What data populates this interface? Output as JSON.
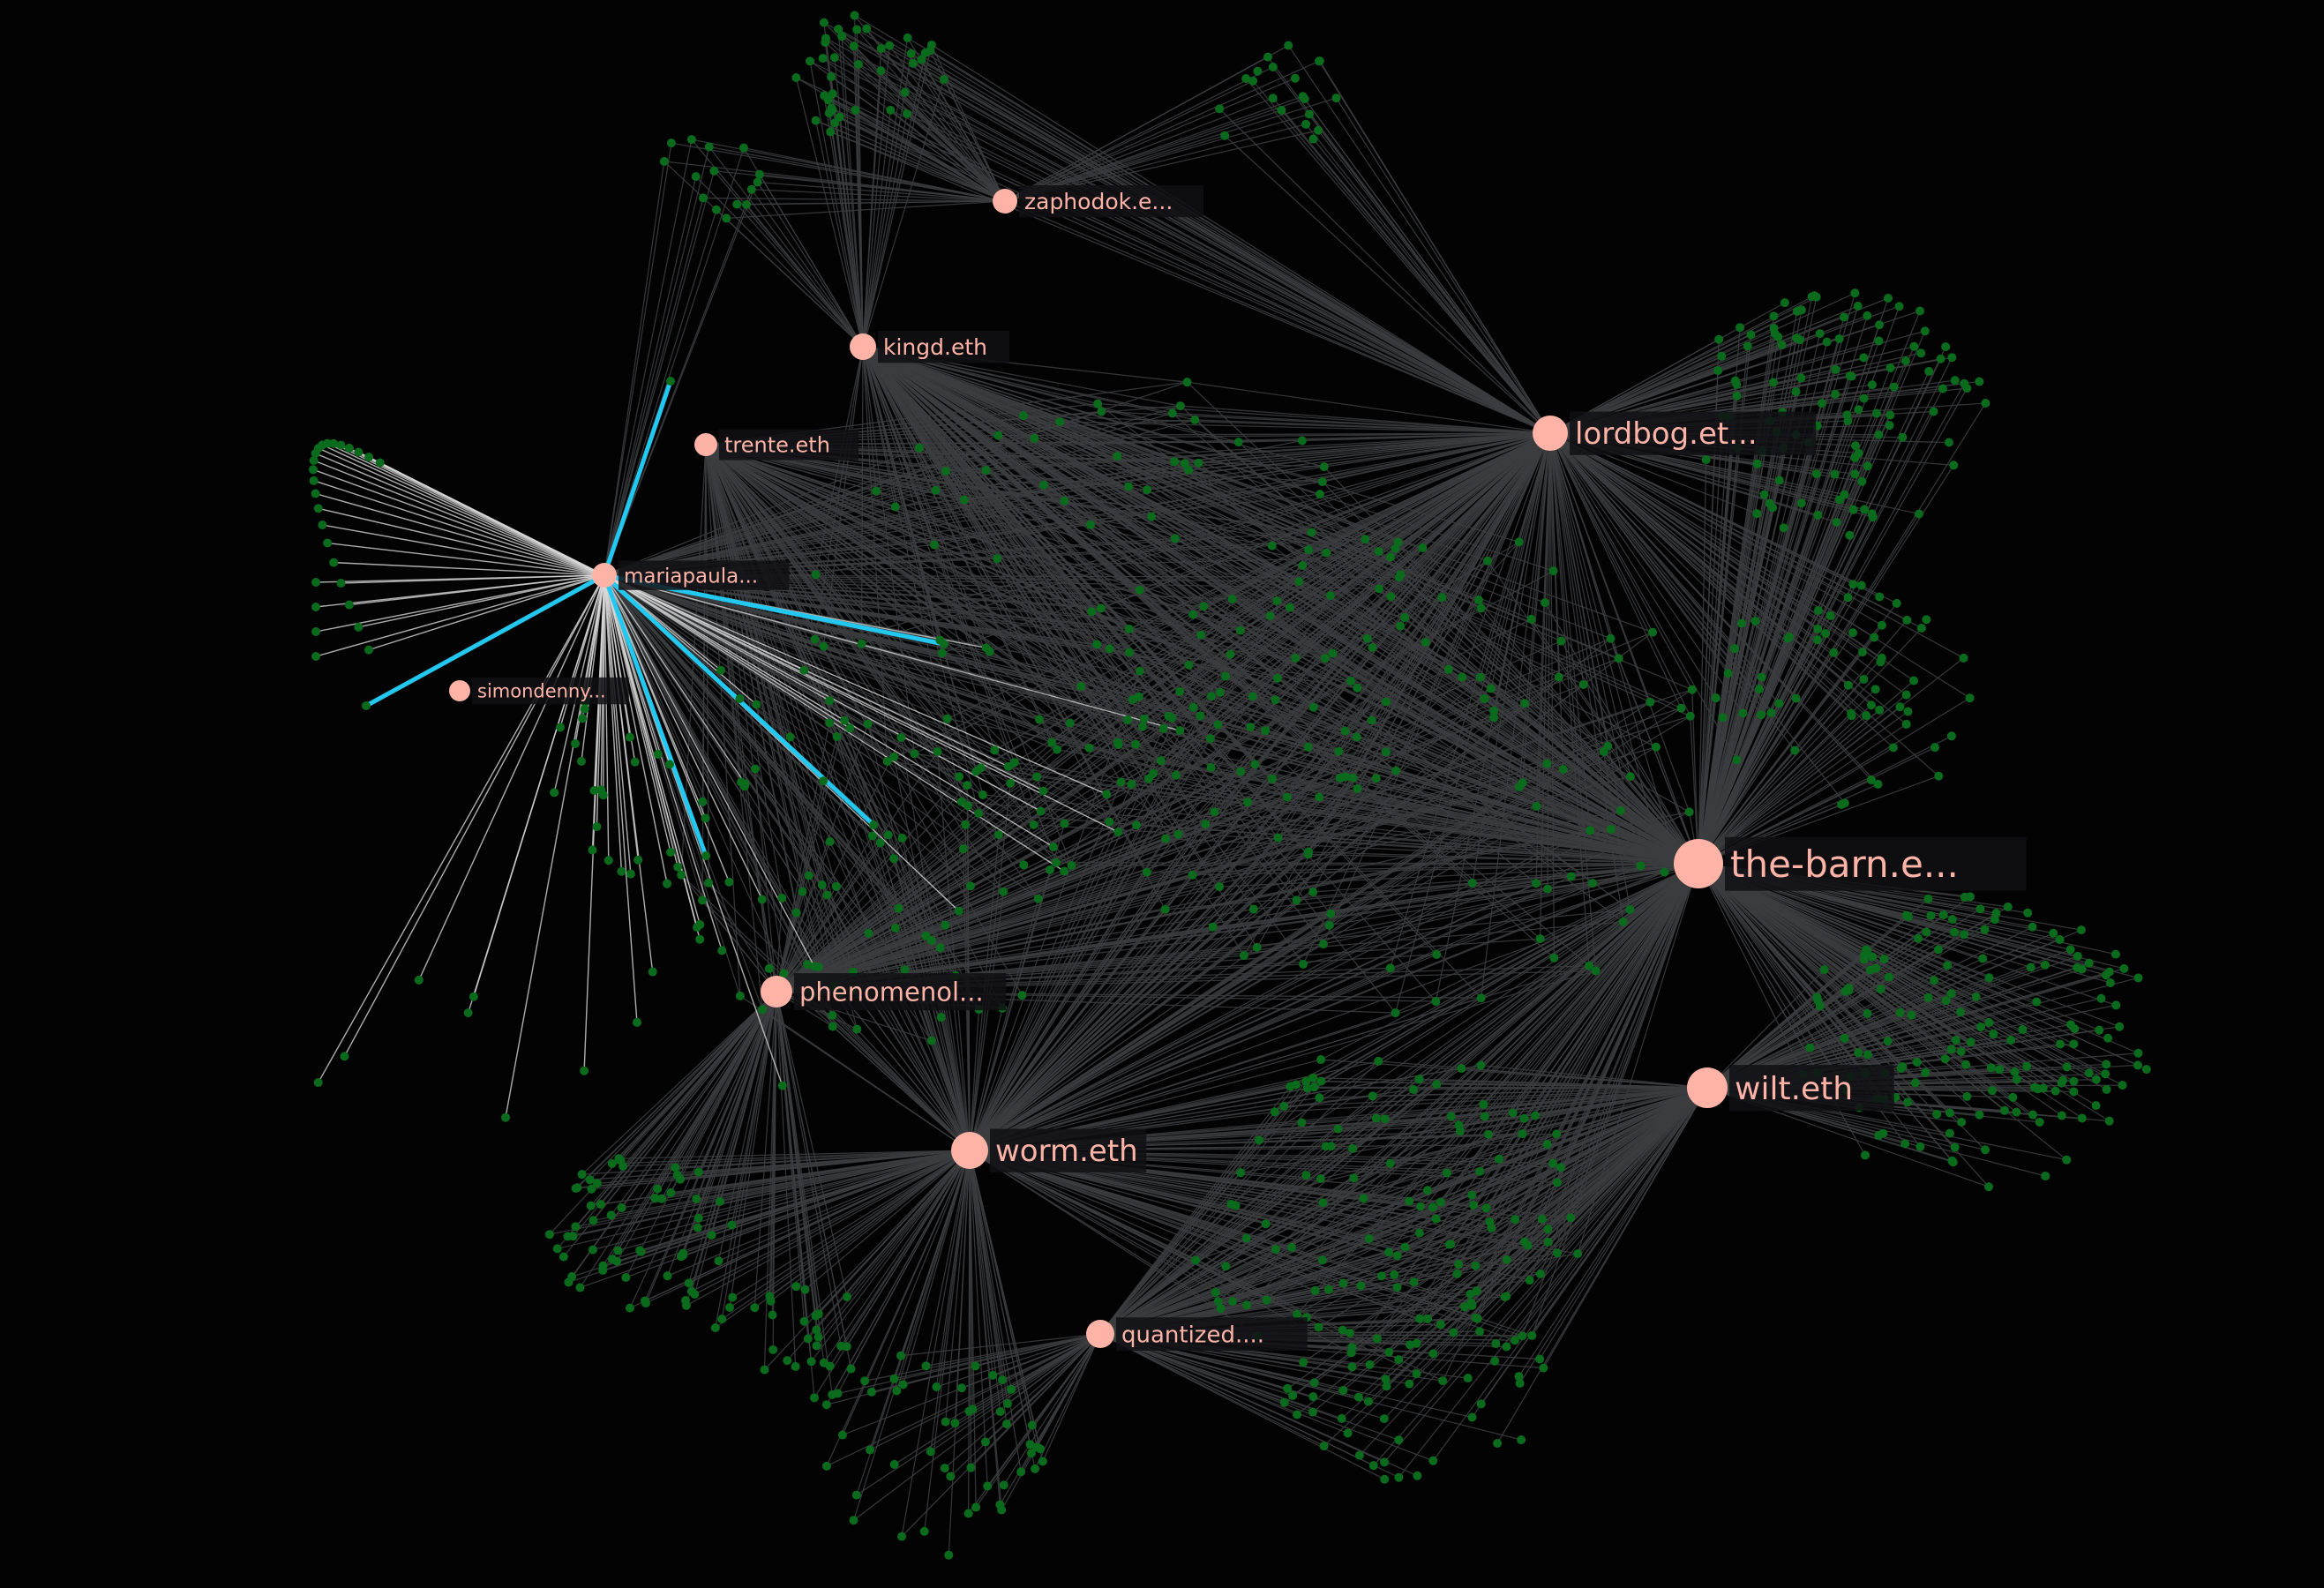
{
  "colors": {
    "background": "#030304",
    "hub": "#ffb3a7",
    "leaf": "#0b6b1c",
    "edge": "#3c3d40",
    "edge_selected": "#d8d8d8",
    "edge_highlight": "#22c8f0"
  },
  "selected_node": "mariapaula...",
  "hubs": [
    {
      "id": "zaphodok",
      "label": "zaphodok.e..."
    },
    {
      "id": "kingd",
      "label": "kingd.eth"
    },
    {
      "id": "trente",
      "label": "trente.eth"
    },
    {
      "id": "mariapaula",
      "label": "mariapaula..."
    },
    {
      "id": "simondenny",
      "label": "simondenny..."
    },
    {
      "id": "lordbog",
      "label": "lordbog.et..."
    },
    {
      "id": "the-barn",
      "label": "the-barn.e..."
    },
    {
      "id": "wilt",
      "label": "wilt.eth"
    },
    {
      "id": "worm",
      "label": "worm.eth"
    },
    {
      "id": "phenomenol",
      "label": "phenomenol..."
    },
    {
      "id": "quantized",
      "label": "quantized...."
    }
  ]
}
